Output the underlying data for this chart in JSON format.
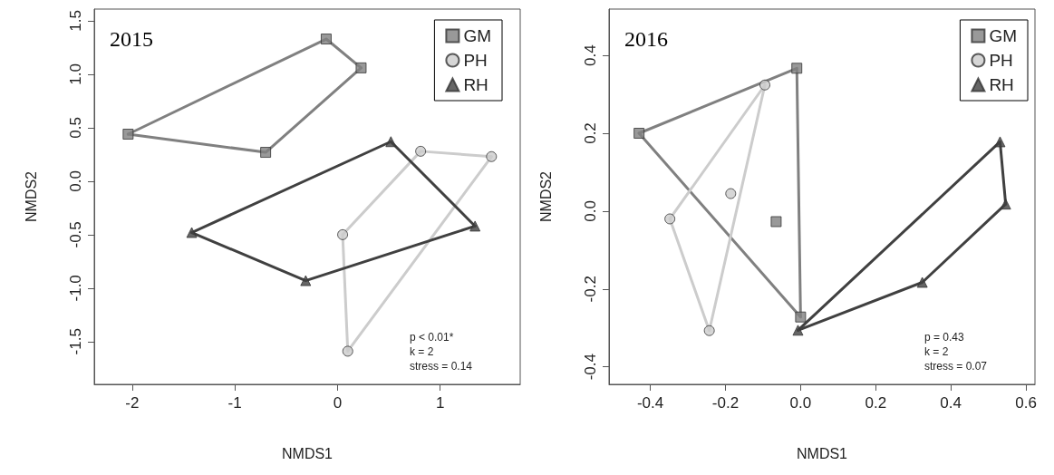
{
  "chart_data": [
    {
      "type": "scatter",
      "title": "2015",
      "xlabel": "NMDS1",
      "ylabel": "NMDS2",
      "xlim": [
        -2.37,
        1.78
      ],
      "ylim": [
        -1.9,
        1.61
      ],
      "xticks": [
        -2,
        -1,
        0,
        1
      ],
      "yticks": [
        {
          "value": -1.5,
          "label": "-1.5"
        },
        {
          "value": -1,
          "label": "-1.0"
        },
        {
          "value": -0.5,
          "label": "-0.5"
        },
        {
          "value": 0,
          "label": "0.0"
        },
        {
          "value": 0.5,
          "label": "0.5"
        },
        {
          "value": 1,
          "label": "1.0"
        },
        {
          "value": 1.5,
          "label": "1.5"
        }
      ],
      "legend": "top right",
      "series": [
        {
          "name": "GM",
          "type": "scatter",
          "marker": "square",
          "color": "#808080",
          "x": [
            -0.11,
            0.23,
            -2.04,
            -0.7
          ],
          "values": [
            1.33,
            1.06,
            0.44,
            0.27
          ]
        },
        {
          "name": "PH",
          "type": "scatter",
          "marker": "circle",
          "color": "#cccccc",
          "x": [
            0.81,
            1.5,
            0.05,
            0.1
          ],
          "values": [
            0.28,
            0.23,
            -0.5,
            -1.59
          ]
        },
        {
          "name": "RH",
          "type": "scatter",
          "marker": "triangle",
          "color": "#404040",
          "x": [
            0.52,
            1.34,
            -1.42,
            -0.31
          ],
          "values": [
            0.37,
            -0.42,
            -0.48,
            -0.93
          ]
        },
        {
          "type": "line",
          "marker": "none",
          "color": "#808080",
          "x": [
            -2.04,
            -0.11,
            0.23
          ],
          "values": [
            0.44,
            1.33,
            1.06
          ]
        },
        {
          "type": "line",
          "marker": "none",
          "color": "#808080",
          "x": [
            -2.04,
            -0.7,
            0.23
          ],
          "values": [
            0.44,
            0.27,
            1.06
          ]
        },
        {
          "type": "line",
          "marker": "none",
          "color": "#cccccc",
          "x": [
            0.05,
            0.81,
            1.5
          ],
          "values": [
            -0.5,
            0.28,
            0.23
          ]
        },
        {
          "type": "line",
          "marker": "none",
          "color": "#cccccc",
          "x": [
            0.05,
            0.1,
            1.5
          ],
          "values": [
            -0.5,
            -1.59,
            0.23
          ]
        },
        {
          "type": "line",
          "marker": "none",
          "color": "#404040",
          "x": [
            -1.42,
            0.52,
            1.34
          ],
          "values": [
            -0.48,
            0.37,
            -0.42
          ]
        },
        {
          "type": "line",
          "marker": "none",
          "color": "#404040",
          "x": [
            -1.42,
            -0.31,
            1.34
          ],
          "values": [
            -0.48,
            -0.93,
            -0.42
          ]
        }
      ],
      "annotations": [
        "p < 0.01*",
        "k = 2",
        "stress = 0.14"
      ]
    },
    {
      "type": "scatter",
      "title": "2016",
      "xlabel": "NMDS1",
      "ylabel": "NMDS2",
      "xlim": [
        -0.51,
        0.624
      ],
      "ylim": [
        -0.445,
        0.519
      ],
      "xticks": [
        {
          "value": -0.4,
          "label": "-0.4"
        },
        {
          "value": -0.2,
          "label": "-0.2"
        },
        {
          "value": 0,
          "label": "0.0"
        },
        {
          "value": 0.2,
          "label": "0.2"
        },
        {
          "value": 0.4,
          "label": "0.4"
        },
        {
          "value": 0.6,
          "label": "0.6"
        }
      ],
      "yticks": [
        {
          "value": -0.4,
          "label": "-0.4"
        },
        {
          "value": -0.2,
          "label": "-0.2"
        },
        {
          "value": 0,
          "label": "0.0"
        },
        {
          "value": 0.2,
          "label": "0.2"
        },
        {
          "value": 0.4,
          "label": "0.4"
        }
      ],
      "legend": "top right",
      "series": [
        {
          "name": "GM",
          "type": "scatter",
          "marker": "square",
          "color": "#808080",
          "x": [
            -0.43,
            -0.01,
            0.0,
            -0.065
          ],
          "values": [
            0.2,
            0.367,
            -0.272,
            -0.027
          ]
        },
        {
          "name": "PH",
          "type": "scatter",
          "marker": "circle",
          "color": "#cccccc",
          "x": [
            -0.095,
            -0.348,
            -0.243,
            -0.186
          ],
          "values": [
            0.324,
            -0.02,
            -0.307,
            0.045
          ]
        },
        {
          "name": "RH",
          "type": "scatter",
          "marker": "triangle",
          "color": "#404040",
          "x": [
            0.531,
            0.546,
            0.324,
            -0.007
          ],
          "values": [
            0.178,
            0.018,
            -0.183,
            -0.306
          ]
        },
        {
          "type": "line",
          "marker": "none",
          "color": "#808080",
          "x": [
            -0.43,
            -0.01,
            0.0
          ],
          "values": [
            0.2,
            0.367,
            -0.272
          ]
        },
        {
          "type": "line",
          "marker": "none",
          "color": "#808080",
          "x": [
            -0.43,
            0.0
          ],
          "values": [
            0.2,
            -0.272
          ]
        },
        {
          "type": "line",
          "marker": "none",
          "color": "#cccccc",
          "x": [
            -0.348,
            -0.095
          ],
          "values": [
            -0.02,
            0.324
          ]
        },
        {
          "type": "line",
          "marker": "none",
          "color": "#cccccc",
          "x": [
            -0.348,
            -0.243,
            -0.095
          ],
          "values": [
            -0.02,
            -0.307,
            0.324
          ]
        },
        {
          "type": "line",
          "marker": "none",
          "color": "#404040",
          "x": [
            -0.007,
            0.531,
            0.546
          ],
          "values": [
            -0.306,
            0.178,
            0.018
          ]
        },
        {
          "type": "line",
          "marker": "none",
          "color": "#404040",
          "x": [
            -0.007,
            0.324,
            0.546
          ],
          "values": [
            -0.306,
            -0.183,
            0.018
          ]
        }
      ],
      "annotations": [
        "p = 0.43",
        "k = 2",
        "stress = 0.07"
      ]
    }
  ]
}
